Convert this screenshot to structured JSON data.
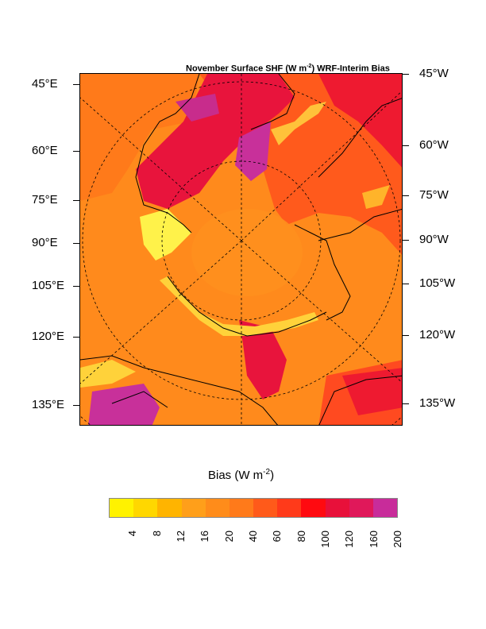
{
  "title": {
    "prefix": "November Surface SHF (W m",
    "exp": "-2",
    "suffix": ") WRF-Interim Bias"
  },
  "left_labels": [
    "45°E",
    "60°E",
    "75°E",
    "90°E",
    "105°E",
    "120°E",
    "135°E"
  ],
  "right_labels": [
    "45°W",
    "60°W",
    "75°W",
    "90°W",
    "105°W",
    "120°W",
    "135°W"
  ],
  "colorbar": {
    "title_prefix": "Bias (W m",
    "title_exp": "-2",
    "title_suffix": ")",
    "labels": [
      "4",
      "8",
      "12",
      "16",
      "20",
      "40",
      "60",
      "80",
      "100",
      "120",
      "160",
      "200"
    ],
    "colors": [
      "#fff200",
      "#ffd700",
      "#ffb400",
      "#ff9f1a",
      "#ff8c1a",
      "#ff7a1a",
      "#ff5a1a",
      "#ff3a1a",
      "#ff0a10",
      "#e8103a",
      "#e0185a",
      "#c82c9a"
    ]
  },
  "colors": {
    "ocean_base": "#ff8a1c",
    "warm": "#ff4a20",
    "hot": "#e8143c",
    "magenta": "#c8309a",
    "coast": "#fff24a",
    "land_line": "#000000"
  }
}
